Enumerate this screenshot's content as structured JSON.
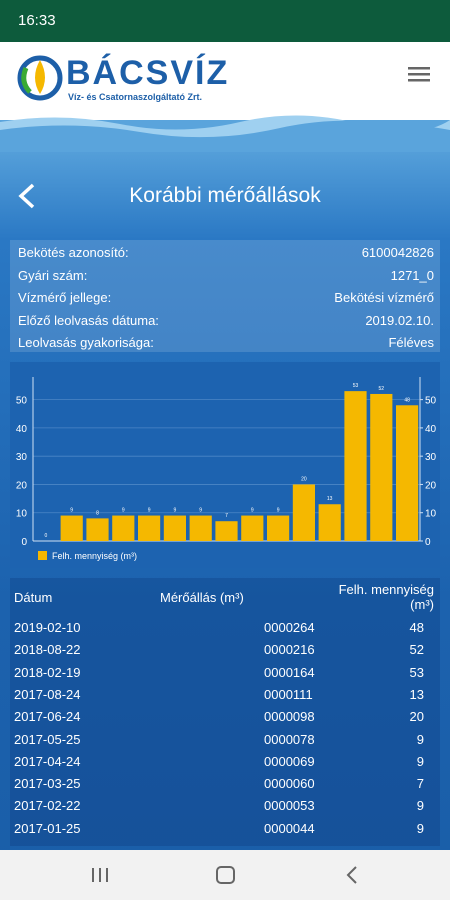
{
  "status_bar": {
    "time": "16:33"
  },
  "header": {
    "brand": "BÁCSVÍZ",
    "tagline": "Víz- és Csatornaszolgáltató Zrt."
  },
  "page_title": "Korábbi mérőállások",
  "info": [
    {
      "label": "Bekötés azonosító:",
      "value": "6100042826"
    },
    {
      "label": "Gyári szám:",
      "value": "1271_0"
    },
    {
      "label": "Vízmérő jellege:",
      "value": "Bekötési vízmérő"
    },
    {
      "label": "Előző leolvasás dátuma:",
      "value": "2019.02.10."
    },
    {
      "label": "Leolvasás gyakorisága:",
      "value": "Féléves"
    }
  ],
  "chart_data": {
    "type": "bar",
    "categories": [
      null,
      null,
      null,
      null,
      null,
      null,
      null,
      null,
      null,
      null,
      null,
      null,
      null,
      null,
      null
    ],
    "series": [
      {
        "name": "Felh. mennyiség (m³)",
        "color": "#f5b800",
        "values": [
          0,
          9,
          8,
          9,
          9,
          9,
          9,
          7,
          9,
          9,
          20,
          13,
          53,
          52,
          48
        ]
      }
    ],
    "ylim": [
      0,
      58
    ],
    "yticks": [
      0,
      10,
      20,
      30,
      40,
      50
    ],
    "y2lim": [
      0,
      58
    ],
    "y2ticks": [
      0,
      10,
      20,
      30,
      40,
      50
    ],
    "grid": true,
    "legend": "bottom-left"
  },
  "table": {
    "columns": [
      "Dátum",
      "Mérőállás (m³)",
      "Felh. mennyiség (m³)"
    ],
    "rows": [
      [
        "2019-02-10",
        "0000264",
        48
      ],
      [
        "2018-08-22",
        "0000216",
        52
      ],
      [
        "2018-02-19",
        "0000164",
        53
      ],
      [
        "2017-08-24",
        "0000111",
        13
      ],
      [
        "2017-06-24",
        "0000098",
        20
      ],
      [
        "2017-05-25",
        "0000078",
        9
      ],
      [
        "2017-04-24",
        "0000069",
        9
      ],
      [
        "2017-03-25",
        "0000060",
        7
      ],
      [
        "2017-02-22",
        "0000053",
        9
      ],
      [
        "2017-01-25",
        "0000044",
        9
      ]
    ]
  }
}
